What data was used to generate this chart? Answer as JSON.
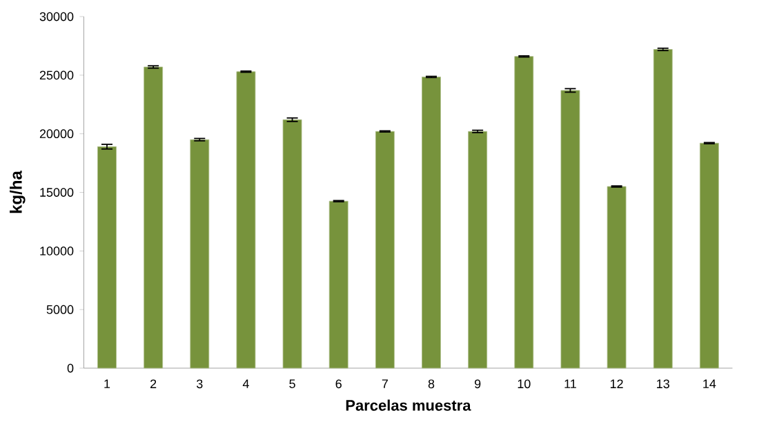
{
  "chart_data": {
    "type": "bar",
    "xlabel": "Parcelas muestra",
    "ylabel": "kg/ha",
    "categories": [
      "1",
      "2",
      "3",
      "4",
      "5",
      "6",
      "7",
      "8",
      "9",
      "10",
      "11",
      "12",
      "13",
      "14"
    ],
    "values": [
      18900,
      25700,
      19500,
      25300,
      21200,
      14250,
      20200,
      24850,
      20200,
      26600,
      23700,
      15500,
      27200,
      19200
    ],
    "errors": [
      200,
      100,
      100,
      50,
      150,
      50,
      50,
      50,
      100,
      50,
      150,
      50,
      100,
      50
    ],
    "color": "#77933c",
    "ylim": [
      0,
      30000
    ],
    "yticks": [
      0,
      5000,
      10000,
      15000,
      20000,
      25000,
      30000
    ],
    "grid": false
  }
}
